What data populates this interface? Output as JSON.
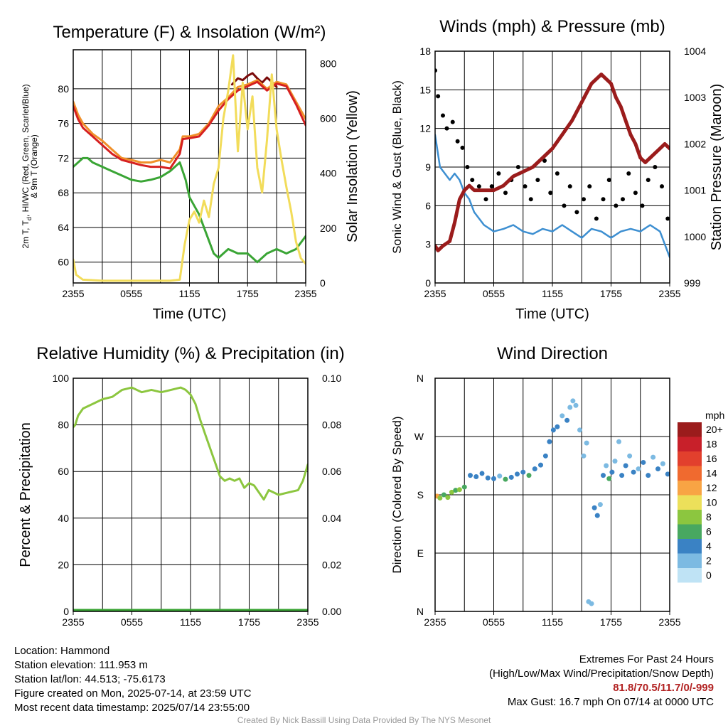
{
  "chart_data": [
    {
      "id": "temp",
      "type": "line",
      "title": "Temperature (F) & Insolation (W/m²)",
      "xlabel": "Time (UTC)",
      "ylabel_lines": [
        "2m T, T",
        "d",
        ", HI/WC (Red, Green, Scarlet/Blue)",
        "& 9m T (Orange)"
      ],
      "y2label": "Solar Insolation (Yellow)",
      "x_ticks": [
        "2355",
        "0555",
        "1155",
        "1755",
        "2355"
      ],
      "y_ticks": [
        60,
        64,
        68,
        72,
        76,
        80
      ],
      "y2_ticks": [
        0,
        200,
        400,
        600,
        800
      ],
      "ylim": [
        57.6,
        84.5
      ],
      "y2lim": [
        0,
        850
      ],
      "grid": true,
      "series": [
        {
          "color": "#7a0a0a",
          "axis": "left",
          "x": [
            16.4,
            17.0,
            17.5,
            18.0,
            18.5,
            19.0,
            19.5,
            20.0,
            20.5,
            21.0
          ],
          "y": [
            80.5,
            81.2,
            81.0,
            81.5,
            81.8,
            81.2,
            80.7,
            81.3,
            80.8,
            80.2
          ]
        },
        {
          "color": "#f0902a",
          "axis": "left",
          "x": [
            0,
            0.5,
            1,
            2,
            3,
            4,
            5,
            6,
            7,
            8,
            9,
            10,
            11,
            11.3,
            12,
            13,
            14,
            15,
            16,
            17,
            18,
            19,
            20,
            21,
            22,
            23,
            24
          ],
          "y": [
            78.5,
            77.0,
            76.0,
            74.8,
            74.0,
            73.0,
            72.0,
            71.8,
            71.5,
            71.5,
            71.8,
            71.5,
            73.0,
            74.5,
            74.5,
            74.8,
            76.0,
            78.0,
            79.0,
            80.2,
            80.5,
            81.0,
            80.0,
            80.8,
            80.5,
            78.5,
            76.5
          ]
        },
        {
          "color": "#d62020",
          "axis": "left",
          "x": [
            0,
            0.5,
            1,
            2,
            3,
            4,
            5,
            6,
            7,
            8,
            9,
            10,
            11,
            11.3,
            12,
            13,
            14,
            15,
            16,
            17,
            18,
            19,
            20,
            21,
            22,
            23,
            24
          ],
          "y": [
            78.0,
            76.5,
            75.5,
            74.5,
            73.5,
            72.5,
            71.8,
            71.5,
            71.2,
            71.0,
            71.0,
            70.8,
            72.5,
            74.2,
            74.3,
            74.5,
            75.8,
            77.5,
            78.8,
            79.8,
            80.3,
            80.8,
            79.8,
            80.6,
            80.3,
            78.2,
            75.8
          ]
        },
        {
          "color": "#3aa535",
          "axis": "left",
          "x": [
            0,
            0.5,
            1,
            1.5,
            2,
            3,
            4,
            5,
            6,
            7,
            8,
            9,
            10,
            11,
            11.6,
            12,
            13,
            14,
            14.5,
            15,
            16,
            17,
            18,
            19,
            20,
            21,
            22,
            23,
            24
          ],
          "y": [
            71.0,
            71.5,
            72.0,
            72.0,
            71.5,
            71.0,
            70.5,
            70.0,
            69.5,
            69.3,
            69.5,
            69.8,
            70.5,
            71.5,
            69.5,
            67.5,
            65.5,
            62.5,
            61.0,
            60.5,
            61.5,
            61.0,
            61.0,
            60.0,
            61.0,
            61.5,
            61.0,
            61.5,
            63.0
          ]
        },
        {
          "color": "#f2dc5a",
          "axis": "right",
          "x": [
            0,
            0.3,
            1,
            2,
            3,
            4,
            5,
            6,
            7,
            8,
            9,
            10,
            11,
            11.5,
            12,
            12.5,
            13,
            13.5,
            14,
            14.5,
            15,
            15.5,
            16,
            16.5,
            17,
            17.5,
            18,
            18.5,
            19,
            19.5,
            20,
            20.5,
            21,
            21.5,
            22,
            22.5,
            23,
            23.5,
            24
          ],
          "y": [
            85,
            30,
            12,
            10,
            8,
            8,
            8,
            8,
            8,
            8,
            8,
            8,
            12,
            140,
            230,
            260,
            220,
            300,
            240,
            360,
            420,
            600,
            700,
            830,
            480,
            730,
            560,
            680,
            420,
            330,
            520,
            760,
            560,
            450,
            350,
            260,
            150,
            90,
            70
          ]
        }
      ]
    },
    {
      "id": "winds",
      "type": "line",
      "title": "Winds (mph) & Pressure (mb)",
      "xlabel": "Time (UTC)",
      "ylabel": "Sonic Wind & Gust (Blue, Black)",
      "y2label": "Station Pressure (Maroon)",
      "x_ticks": [
        "2355",
        "0555",
        "1155",
        "1755",
        "2355"
      ],
      "y_ticks": [
        0,
        3,
        6,
        9,
        12,
        15,
        18
      ],
      "y2_ticks": [
        999,
        1000,
        1001,
        1002,
        1003,
        1004
      ],
      "ylim": [
        0,
        18
      ],
      "y2lim": [
        999,
        1004
      ],
      "grid": true,
      "series": [
        {
          "name": "Sonic Wind",
          "color": "#3d8fd1",
          "axis": "left",
          "x": [
            0,
            0.5,
            1,
            1.5,
            2,
            2.5,
            3,
            3.5,
            4,
            5,
            6,
            7,
            8,
            9,
            10,
            11,
            12,
            13,
            14,
            15,
            16,
            17,
            18,
            19,
            20,
            21,
            22,
            23,
            24
          ],
          "y": [
            11.5,
            9.0,
            8.5,
            8.0,
            8.5,
            8.0,
            7.0,
            6.5,
            5.5,
            4.5,
            4.0,
            4.2,
            4.5,
            4.0,
            3.8,
            4.2,
            4.0,
            4.5,
            4.0,
            3.5,
            4.2,
            4.0,
            3.5,
            4.0,
            4.2,
            4.0,
            4.5,
            4.0,
            2.0
          ]
        },
        {
          "name": "Gust",
          "type": "scatter",
          "color": "#000000",
          "axis": "left",
          "x": [
            0,
            0.3,
            0.8,
            1.2,
            1.8,
            2.3,
            2.8,
            3.3,
            3.8,
            4.5,
            5.2,
            5.8,
            6.5,
            7.2,
            7.8,
            8.5,
            9.2,
            9.8,
            10.5,
            11.2,
            11.8,
            12.5,
            13.2,
            13.8,
            14.5,
            15.2,
            15.8,
            16.5,
            17.2,
            17.8,
            18.5,
            19.2,
            19.8,
            20.5,
            21.2,
            21.8,
            22.5,
            23.2,
            23.8
          ],
          "y": [
            16.5,
            14.5,
            13.0,
            12.0,
            12.5,
            11.0,
            10.5,
            9.0,
            8.0,
            7.5,
            6.5,
            7.5,
            8.5,
            7.0,
            8.0,
            9.0,
            7.5,
            6.5,
            8.0,
            9.5,
            7.0,
            8.5,
            6.0,
            7.5,
            5.5,
            6.5,
            7.5,
            5.0,
            6.5,
            8.0,
            6.0,
            6.5,
            8.5,
            7.0,
            6.0,
            8.0,
            9.0,
            7.5,
            5.0
          ]
        },
        {
          "name": "Station Pressure",
          "color": "#9b1c1c",
          "axis": "right",
          "x": [
            0,
            0.3,
            0.8,
            1.5,
            2,
            2.5,
            3,
            3.5,
            4,
            5,
            6,
            7,
            8,
            9,
            10,
            11,
            12,
            13,
            14,
            15,
            15.5,
            16,
            16.5,
            17,
            17.5,
            18,
            18.5,
            19,
            19.5,
            20,
            20.5,
            21,
            21.5,
            22,
            22.5,
            23,
            23.5,
            24
          ],
          "y": [
            999.8,
            999.7,
            999.8,
            999.9,
            1000.3,
            1000.8,
            1001.0,
            1001.1,
            1001.0,
            1001.0,
            1001.0,
            1001.1,
            1001.3,
            1001.4,
            1001.5,
            1001.7,
            1001.9,
            1002.2,
            1002.5,
            1002.9,
            1003.1,
            1003.3,
            1003.4,
            1003.5,
            1003.4,
            1003.3,
            1003.0,
            1002.8,
            1002.5,
            1002.2,
            1002.0,
            1001.7,
            1001.6,
            1001.7,
            1001.8,
            1001.9,
            1002.0,
            1001.9
          ]
        }
      ]
    },
    {
      "id": "rh",
      "type": "line",
      "title": "Relative Humidity (%) & Precipitation (in)",
      "ylabel": "Percent & Precipitation",
      "x_ticks": [
        "2355",
        "0555",
        "1155",
        "1755",
        "2355"
      ],
      "y_ticks": [
        0,
        20,
        40,
        60,
        80,
        100
      ],
      "y2_ticks": [
        "0.00",
        "0.02",
        "0.04",
        "0.06",
        "0.08",
        "0.10"
      ],
      "ylim": [
        0,
        100
      ],
      "y2lim": [
        0,
        0.1
      ],
      "grid": true,
      "series": [
        {
          "name": "Relative Humidity",
          "color": "#8cc63f",
          "axis": "left",
          "x": [
            0,
            0.2,
            0.5,
            1,
            2,
            3,
            4,
            5,
            6,
            7,
            8,
            9,
            10,
            11,
            11.5,
            12,
            12.5,
            13,
            13.5,
            14,
            14.5,
            15,
            15.5,
            16,
            16.5,
            17,
            17.5,
            18,
            18.5,
            19,
            19.5,
            20,
            21,
            22,
            23,
            23.5,
            24
          ],
          "y": [
            79,
            80,
            84,
            87,
            89,
            91,
            92,
            95,
            96,
            94,
            95,
            94,
            95,
            96,
            95,
            93,
            89,
            82,
            76,
            70,
            64,
            58,
            56,
            57,
            56,
            57,
            53,
            55,
            54,
            51,
            48,
            52,
            50,
            51,
            52,
            56,
            63
          ]
        },
        {
          "name": "Precipitation",
          "color": "#3aa535",
          "axis": "right",
          "x": [
            0,
            24
          ],
          "y": [
            0,
            0
          ]
        }
      ]
    },
    {
      "id": "wdir",
      "type": "scatter",
      "title": "Wind Direction",
      "ylabel": "Direction (Colored By Speed)",
      "x_ticks": [
        "2355",
        "0555",
        "1155",
        "1755",
        "2355"
      ],
      "y_ticks": [
        "N",
        "E",
        "S",
        "W",
        "N"
      ],
      "ylim": [
        0,
        360
      ],
      "grid": true,
      "colorbar": {
        "title": "mph",
        "labels": [
          "20+",
          "18",
          "16",
          "14",
          "12",
          "10",
          "8",
          "6",
          "4",
          "2",
          "0"
        ],
        "colors": [
          "#9b1c1c",
          "#c8202a",
          "#e2402d",
          "#f06a2f",
          "#f8a444",
          "#ece05a",
          "#8cc63f",
          "#48a860",
          "#3a82c4",
          "#7cbae2",
          "#bfe3f5"
        ]
      },
      "points": [
        {
          "x": 0.2,
          "y": 178,
          "s": 12
        },
        {
          "x": 0.5,
          "y": 175,
          "s": 8
        },
        {
          "x": 0.9,
          "y": 180,
          "s": 6
        },
        {
          "x": 1.3,
          "y": 176,
          "s": 8
        },
        {
          "x": 1.7,
          "y": 184,
          "s": 8
        },
        {
          "x": 2.1,
          "y": 187,
          "s": 6
        },
        {
          "x": 2.5,
          "y": 188,
          "s": 8
        },
        {
          "x": 3.0,
          "y": 192,
          "s": 6
        },
        {
          "x": 3.6,
          "y": 210,
          "s": 4
        },
        {
          "x": 4.2,
          "y": 208,
          "s": 4
        },
        {
          "x": 4.8,
          "y": 213,
          "s": 4
        },
        {
          "x": 5.4,
          "y": 206,
          "s": 4
        },
        {
          "x": 6.0,
          "y": 205,
          "s": 4
        },
        {
          "x": 6.6,
          "y": 209,
          "s": 2
        },
        {
          "x": 7.2,
          "y": 204,
          "s": 6
        },
        {
          "x": 7.8,
          "y": 207,
          "s": 4
        },
        {
          "x": 8.4,
          "y": 212,
          "s": 4
        },
        {
          "x": 9.0,
          "y": 215,
          "s": 4
        },
        {
          "x": 9.6,
          "y": 210,
          "s": 6
        },
        {
          "x": 10.2,
          "y": 220,
          "s": 4
        },
        {
          "x": 10.8,
          "y": 226,
          "s": 4
        },
        {
          "x": 11.3,
          "y": 240,
          "s": 4
        },
        {
          "x": 11.7,
          "y": 262,
          "s": 4
        },
        {
          "x": 12.1,
          "y": 280,
          "s": 4
        },
        {
          "x": 12.5,
          "y": 285,
          "s": 4
        },
        {
          "x": 13.0,
          "y": 302,
          "s": 2
        },
        {
          "x": 13.5,
          "y": 295,
          "s": 4
        },
        {
          "x": 13.8,
          "y": 315,
          "s": 2
        },
        {
          "x": 14.1,
          "y": 325,
          "s": 2
        },
        {
          "x": 14.4,
          "y": 318,
          "s": 2
        },
        {
          "x": 14.8,
          "y": 280,
          "s": 2
        },
        {
          "x": 15.2,
          "y": 240,
          "s": 2
        },
        {
          "x": 15.5,
          "y": 260,
          "s": 2
        },
        {
          "x": 15.7,
          "y": 15,
          "s": 2
        },
        {
          "x": 16.0,
          "y": 12,
          "s": 2
        },
        {
          "x": 16.3,
          "y": 160,
          "s": 4
        },
        {
          "x": 16.6,
          "y": 148,
          "s": 4
        },
        {
          "x": 16.9,
          "y": 165,
          "s": 2
        },
        {
          "x": 17.2,
          "y": 210,
          "s": 4
        },
        {
          "x": 17.5,
          "y": 225,
          "s": 2
        },
        {
          "x": 17.8,
          "y": 205,
          "s": 6
        },
        {
          "x": 18.1,
          "y": 215,
          "s": 4
        },
        {
          "x": 18.4,
          "y": 232,
          "s": 2
        },
        {
          "x": 18.8,
          "y": 262,
          "s": 2
        },
        {
          "x": 19.1,
          "y": 210,
          "s": 4
        },
        {
          "x": 19.5,
          "y": 225,
          "s": 4
        },
        {
          "x": 19.9,
          "y": 240,
          "s": 2
        },
        {
          "x": 20.3,
          "y": 215,
          "s": 4
        },
        {
          "x": 20.8,
          "y": 220,
          "s": 2
        },
        {
          "x": 21.3,
          "y": 230,
          "s": 4
        },
        {
          "x": 21.8,
          "y": 210,
          "s": 4
        },
        {
          "x": 22.3,
          "y": 238,
          "s": 2
        },
        {
          "x": 22.8,
          "y": 220,
          "s": 4
        },
        {
          "x": 23.3,
          "y": 228,
          "s": 2
        },
        {
          "x": 23.8,
          "y": 212,
          "s": 4
        }
      ]
    }
  ],
  "info": {
    "location": "Location: Hammond",
    "elevation": "Station elevation: 111.953 m",
    "latlon": "Station lat/lon: 44.513; -75.6173",
    "created": "Figure created on Mon, 2025-07-14, at 23:59 UTC",
    "recent": "Most recent data timestamp: 2025/07/14 23:55:00"
  },
  "extremes": {
    "title": "Extremes For Past 24 Hours",
    "subtitle": "(High/Low/Max Wind/Precipitation/Snow Depth)",
    "values": "81.8/70.5/11.7/0/-999",
    "gust": "Max Gust: 16.7 mph On 07/14 at 0000 UTC"
  },
  "credit": "Created By Nick Bassill Using Data Provided By The NYS Mesonet"
}
